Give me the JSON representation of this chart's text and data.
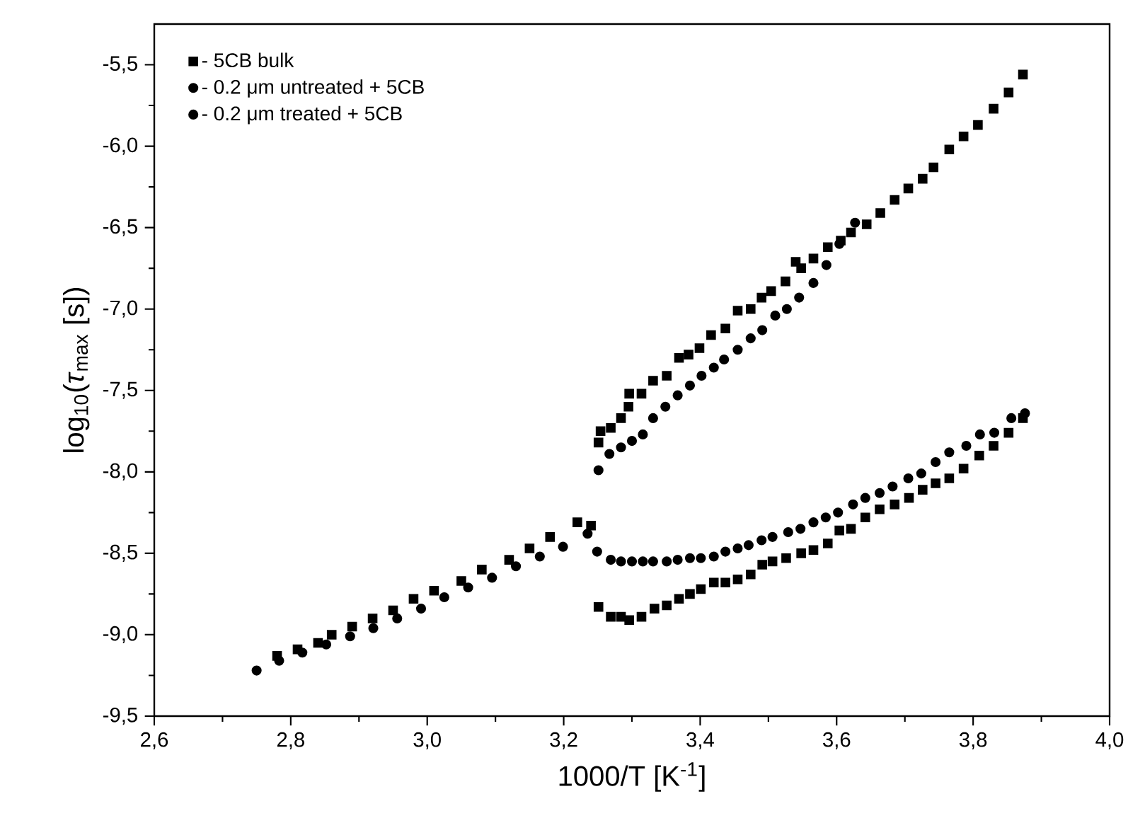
{
  "chart_data": {
    "type": "scatter",
    "xlabel": "1000/T [K$^{-1}$]",
    "ylabel": "log$_{10}$(*τ*$_{max}$ [s])",
    "xlim": [
      2.6,
      4.0
    ],
    "ylim": [
      -9.5,
      -5.25
    ],
    "xticks": [
      {
        "value": 2.6,
        "label": "2,6"
      },
      {
        "value": 2.8,
        "label": "2,8"
      },
      {
        "value": 3.0,
        "label": "3,0"
      },
      {
        "value": 3.2,
        "label": "3,2"
      },
      {
        "value": 3.4,
        "label": "3,4"
      },
      {
        "value": 3.6,
        "label": "3,6"
      },
      {
        "value": 3.8,
        "label": "3,8"
      },
      {
        "value": 4.0,
        "label": "4,0"
      }
    ],
    "yticks": [
      {
        "value": -9.5,
        "label": "-9,5"
      },
      {
        "value": -9.0,
        "label": "-9,0"
      },
      {
        "value": -8.5,
        "label": "-8,5"
      },
      {
        "value": -8.0,
        "label": "-8,0"
      },
      {
        "value": -7.5,
        "label": "-7,5"
      },
      {
        "value": -7.0,
        "label": "-7,0"
      },
      {
        "value": -6.5,
        "label": "-6,5"
      },
      {
        "value": -6.0,
        "label": "-6,0"
      },
      {
        "value": -5.5,
        "label": "-5,5"
      }
    ],
    "legend": "top left",
    "series": [
      {
        "name": "- 5CB bulk",
        "color": "#000000",
        "marker": "square",
        "x": [
          2.78,
          2.81,
          2.84,
          2.86,
          2.89,
          2.92,
          2.95,
          2.98,
          3.01,
          3.05,
          3.08,
          3.12,
          3.15,
          3.18,
          3.22,
          3.24,
          3.251,
          3.254,
          3.269,
          3.284,
          3.295,
          3.296,
          3.314,
          3.331,
          3.351,
          3.369,
          3.383,
          3.399,
          3.416,
          3.437,
          3.455,
          3.474,
          3.49,
          3.504,
          3.525,
          3.54,
          3.548,
          3.566,
          3.587,
          3.606,
          3.621,
          3.644,
          3.664,
          3.685,
          3.705,
          3.726,
          3.742,
          3.765,
          3.786,
          3.807,
          3.83,
          3.852,
          3.873,
          3.251,
          3.269,
          3.284,
          3.296,
          3.314,
          3.333,
          3.351,
          3.369,
          3.385,
          3.401,
          3.42,
          3.437,
          3.455,
          3.474,
          3.491,
          3.506,
          3.526,
          3.548,
          3.566,
          3.587,
          3.604,
          3.621,
          3.642,
          3.663,
          3.685,
          3.706,
          3.726,
          3.745,
          3.765,
          3.786,
          3.809,
          3.83,
          3.852,
          3.873
        ],
        "values": [
          -9.13,
          -9.09,
          -9.05,
          -9.0,
          -8.95,
          -8.9,
          -8.85,
          -8.78,
          -8.73,
          -8.67,
          -8.6,
          -8.54,
          -8.47,
          -8.4,
          -8.31,
          -8.33,
          -7.82,
          -7.75,
          -7.73,
          -7.67,
          -7.6,
          -7.52,
          -7.52,
          -7.44,
          -7.41,
          -7.3,
          -7.28,
          -7.24,
          -7.16,
          -7.12,
          -7.01,
          -7.0,
          -6.93,
          -6.89,
          -6.83,
          -6.71,
          -6.75,
          -6.69,
          -6.62,
          -6.58,
          -6.53,
          -6.48,
          -6.41,
          -6.33,
          -6.26,
          -6.2,
          -6.13,
          -6.02,
          -5.94,
          -5.87,
          -5.77,
          -5.67,
          -5.56,
          -8.83,
          -8.89,
          -8.89,
          -8.91,
          -8.89,
          -8.84,
          -8.82,
          -8.78,
          -8.75,
          -8.72,
          -8.68,
          -8.68,
          -8.66,
          -8.63,
          -8.57,
          -8.55,
          -8.53,
          -8.5,
          -8.48,
          -8.44,
          -8.36,
          -8.35,
          -8.28,
          -8.23,
          -8.2,
          -8.16,
          -8.11,
          -8.07,
          -8.04,
          -7.98,
          -7.9,
          -7.84,
          -7.76,
          -7.67
        ]
      },
      {
        "name": "- 0.2 μm untreated + 5CB",
        "color": "#000000",
        "marker": "circle",
        "x": [
          2.75,
          2.783,
          2.817,
          2.852,
          2.887,
          2.921,
          2.956,
          2.991,
          3.025,
          3.06,
          3.095,
          3.13,
          3.165,
          3.199,
          3.235,
          3.251,
          3.267,
          3.284,
          3.3,
          3.316,
          3.331,
          3.349,
          3.367,
          3.385,
          3.402,
          3.42,
          3.435,
          3.455,
          3.474,
          3.491,
          3.51,
          3.527,
          3.545,
          3.566,
          3.585,
          3.604,
          3.627
        ],
        "values": [
          -9.22,
          -9.16,
          -9.11,
          -9.06,
          -9.01,
          -8.96,
          -8.9,
          -8.84,
          -8.77,
          -8.71,
          -8.65,
          -8.58,
          -8.52,
          -8.46,
          -8.38,
          -7.99,
          -7.89,
          -7.85,
          -7.81,
          -7.77,
          -7.67,
          -7.6,
          -7.53,
          -7.47,
          -7.41,
          -7.36,
          -7.31,
          -7.25,
          -7.18,
          -7.13,
          -7.04,
          -7.0,
          -6.93,
          -6.84,
          -6.73,
          -6.6,
          -6.47
        ]
      },
      {
        "name": "- 0.2 μm treated + 5CB",
        "color": "#000000",
        "marker": "circle",
        "x": [
          3.249,
          3.269,
          3.284,
          3.3,
          3.316,
          3.331,
          3.351,
          3.367,
          3.385,
          3.401,
          3.42,
          3.437,
          3.455,
          3.471,
          3.49,
          3.506,
          3.529,
          3.547,
          3.566,
          3.584,
          3.602,
          3.624,
          3.642,
          3.663,
          3.682,
          3.705,
          3.724,
          3.745,
          3.765,
          3.79,
          3.81,
          3.831,
          3.856,
          3.876
        ],
        "values": [
          -8.49,
          -8.54,
          -8.55,
          -8.55,
          -8.55,
          -8.55,
          -8.55,
          -8.54,
          -8.53,
          -8.53,
          -8.52,
          -8.49,
          -8.47,
          -8.45,
          -8.42,
          -8.4,
          -8.37,
          -8.35,
          -8.31,
          -8.28,
          -8.25,
          -8.2,
          -8.16,
          -8.13,
          -8.09,
          -8.04,
          -8.01,
          -7.94,
          -7.88,
          -7.84,
          -7.77,
          -7.76,
          -7.67,
          -7.64
        ]
      }
    ]
  }
}
